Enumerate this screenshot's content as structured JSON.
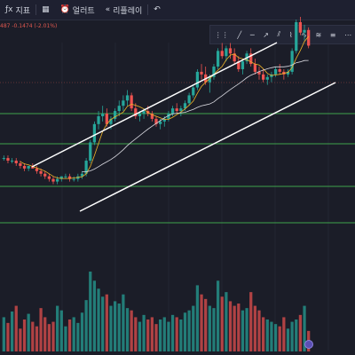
{
  "toolbar": {
    "indicator_label": "지표",
    "alert_label": "얼러트",
    "replay_label": "리플레이"
  },
  "price_info": "487  -0.1474 (-2.01%)",
  "colors": {
    "up": "#26a69a",
    "down": "#ef5350",
    "grid": "#2a2d3a",
    "horizontal_lines": "#3fa34d",
    "channel": "#ffffff"
  },
  "chart_data": {
    "type": "candlestick",
    "title": "",
    "ylim": [
      0,
      100
    ],
    "series": [
      {
        "values": [
          [
            38,
            39,
            37,
            38
          ],
          [
            38,
            39,
            36,
            37
          ],
          [
            37,
            38,
            36,
            37
          ],
          [
            37,
            38,
            35,
            36
          ],
          [
            36,
            37,
            34,
            35
          ],
          [
            35,
            36,
            33,
            34
          ],
          [
            34,
            35,
            33,
            35
          ],
          [
            35,
            36,
            34,
            34
          ],
          [
            34,
            35,
            32,
            33
          ],
          [
            33,
            34,
            31,
            32
          ],
          [
            32,
            33,
            30,
            31
          ],
          [
            31,
            32,
            29,
            30
          ],
          [
            30,
            31,
            28,
            29
          ],
          [
            29,
            31,
            28,
            30
          ],
          [
            30,
            31,
            29,
            31
          ],
          [
            31,
            32,
            30,
            31
          ],
          [
            31,
            32,
            29,
            30
          ],
          [
            30,
            31,
            29,
            30
          ],
          [
            30,
            32,
            29,
            31
          ],
          [
            31,
            33,
            30,
            32
          ],
          [
            32,
            38,
            31,
            37
          ],
          [
            37,
            45,
            36,
            44
          ],
          [
            44,
            52,
            43,
            51
          ],
          [
            51,
            56,
            49,
            54
          ],
          [
            54,
            58,
            52,
            55
          ],
          [
            55,
            57,
            50,
            51
          ],
          [
            51,
            54,
            49,
            53
          ],
          [
            53,
            57,
            52,
            56
          ],
          [
            56,
            60,
            54,
            58
          ],
          [
            58,
            62,
            56,
            60
          ],
          [
            60,
            64,
            58,
            62
          ],
          [
            62,
            63,
            56,
            57
          ],
          [
            57,
            59,
            53,
            54
          ],
          [
            54,
            56,
            52,
            55
          ],
          [
            55,
            57,
            53,
            56
          ],
          [
            56,
            58,
            54,
            55
          ],
          [
            55,
            56,
            52,
            53
          ],
          [
            53,
            54,
            50,
            51
          ],
          [
            51,
            53,
            49,
            52
          ],
          [
            52,
            54,
            50,
            53
          ],
          [
            53,
            56,
            52,
            55
          ],
          [
            55,
            58,
            54,
            57
          ],
          [
            57,
            59,
            55,
            56
          ],
          [
            56,
            58,
            54,
            57
          ],
          [
            57,
            60,
            56,
            59
          ],
          [
            59,
            63,
            58,
            62
          ],
          [
            62,
            66,
            61,
            65
          ],
          [
            65,
            72,
            64,
            71
          ],
          [
            71,
            74,
            68,
            70
          ],
          [
            70,
            73,
            66,
            67
          ],
          [
            67,
            70,
            63,
            69
          ],
          [
            69,
            74,
            68,
            73
          ],
          [
            73,
            80,
            72,
            79
          ],
          [
            79,
            82,
            76,
            77
          ],
          [
            77,
            81,
            75,
            80
          ],
          [
            80,
            82,
            76,
            78
          ],
          [
            78,
            80,
            74,
            75
          ],
          [
            75,
            77,
            71,
            72
          ],
          [
            72,
            76,
            70,
            75
          ],
          [
            75,
            79,
            74,
            78
          ],
          [
            78,
            80,
            73,
            74
          ],
          [
            74,
            76,
            70,
            71
          ],
          [
            71,
            73,
            68,
            70
          ],
          [
            70,
            72,
            67,
            68
          ],
          [
            68,
            70,
            66,
            69
          ],
          [
            69,
            71,
            67,
            70
          ],
          [
            70,
            73,
            69,
            72
          ],
          [
            72,
            74,
            70,
            71
          ],
          [
            71,
            72,
            68,
            70
          ],
          [
            70,
            72,
            69,
            71
          ],
          [
            71,
            80,
            70,
            79
          ],
          [
            79,
            91,
            78,
            90
          ],
          [
            90,
            92,
            85,
            86
          ],
          [
            86,
            89,
            83,
            87
          ],
          [
            87,
            88,
            80,
            81
          ]
        ]
      }
    ],
    "volume": [
      30,
      25,
      35,
      40,
      20,
      28,
      33,
      26,
      22,
      38,
      30,
      24,
      26,
      40,
      36,
      22,
      28,
      30,
      25,
      34,
      45,
      70,
      62,
      55,
      48,
      50,
      40,
      44,
      42,
      50,
      38,
      36,
      30,
      26,
      32,
      28,
      30,
      24,
      28,
      30,
      26,
      32,
      30,
      28,
      34,
      36,
      40,
      58,
      50,
      46,
      40,
      38,
      62,
      48,
      52,
      44,
      40,
      42,
      36,
      38,
      52,
      40,
      36,
      30,
      28,
      26,
      24,
      22,
      30,
      20,
      26,
      28,
      32,
      40,
      18
    ]
  }
}
